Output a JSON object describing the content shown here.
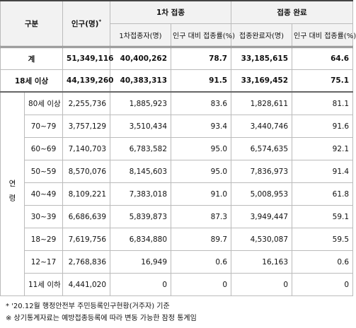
{
  "table": {
    "header": {
      "category": "구분",
      "population": "인구(명)",
      "population_note": "*",
      "first_dose": "1차 접종",
      "completed": "접종 완료",
      "first_dose_count": "1차접종자(명)",
      "first_dose_rate": "인구 대비 접종률(%)",
      "completed_count": "접종완료자(명)",
      "completed_rate": "인구 대비 접종률(%)"
    },
    "total_rows": [
      [
        "계",
        "51,349,116",
        "40,400,262",
        "78.7",
        "33,185,615",
        "64.6"
      ],
      [
        "18세 이상",
        "44,139,260",
        "40,383,313",
        "91.5",
        "33,169,452",
        "75.1"
      ]
    ],
    "age_group_label": "연령",
    "age_rows": [
      [
        "80세 이상",
        "2,255,736",
        "1,885,923",
        "83.6",
        "1,828,611",
        "81.1"
      ],
      [
        "70~79",
        "3,757,129",
        "3,510,434",
        "93.4",
        "3,440,746",
        "91.6"
      ],
      [
        "60~69",
        "7,140,703",
        "6,783,582",
        "95.0",
        "6,574,635",
        "92.1"
      ],
      [
        "50~59",
        "8,570,076",
        "8,145,603",
        "95.0",
        "7,836,973",
        "91.4"
      ],
      [
        "40~49",
        "8,109,221",
        "7,383,018",
        "91.0",
        "5,008,953",
        "61.8"
      ],
      [
        "30~39",
        "6,686,639",
        "5,839,873",
        "87.3",
        "3,949,447",
        "59.1"
      ],
      [
        "18~29",
        "7,619,756",
        "6,834,880",
        "89.7",
        "4,530,087",
        "59.5"
      ],
      [
        "12~17",
        "2,768,836",
        "16,949",
        "0.6",
        "16,163",
        "0.6"
      ],
      [
        "11세 이하",
        "4,441,020",
        "0",
        "0",
        "0",
        "0"
      ]
    ]
  },
  "footnotes": [
    "* '20.12월 행정안전부 주민등록인구현황(거주자) 기준",
    "※ 상기통계자료는 예방접종등록에 따라 변동 가능한 잠정 통계임"
  ]
}
